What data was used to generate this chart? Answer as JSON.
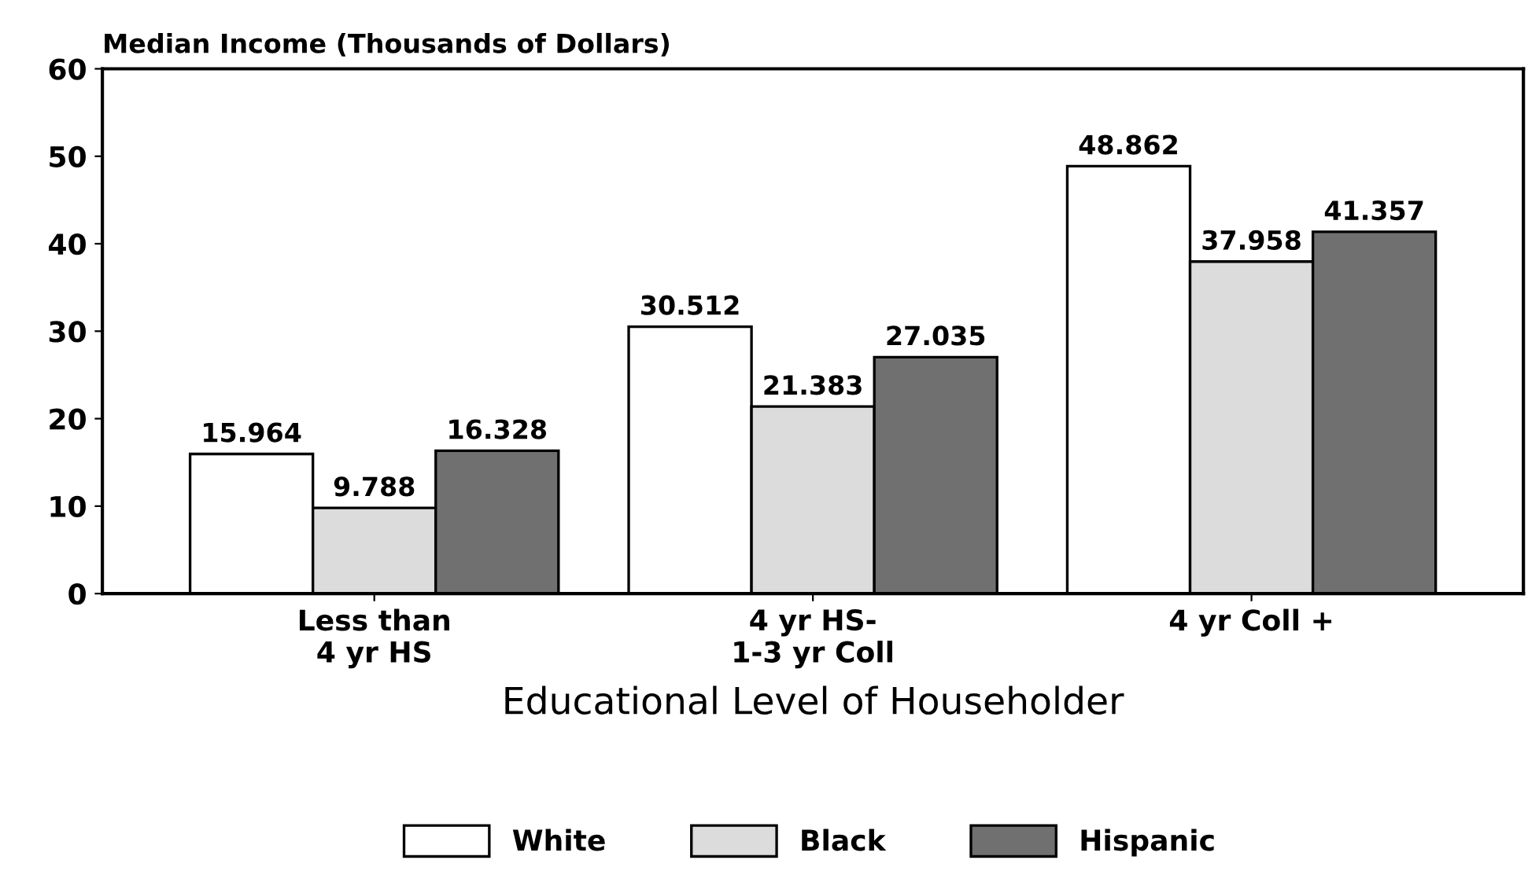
{
  "chart_data": {
    "type": "bar",
    "ylabel": "Median Income (Thousands of Dollars)",
    "xlabel": "Educational Level of Householder",
    "categories": [
      "Less than\n4 yr HS",
      "4 yr HS-\n1-3 yr Coll",
      "4 yr Coll +"
    ],
    "series": [
      {
        "name": "White",
        "color": "#ffffff",
        "values": [
          15.964,
          30.512,
          48.862
        ]
      },
      {
        "name": "Black",
        "color": "#dcdcdc",
        "values": [
          9.788,
          21.383,
          37.958
        ]
      },
      {
        "name": "Hispanic",
        "color": "#707070",
        "values": [
          16.328,
          27.035,
          41.357
        ]
      }
    ],
    "ylim": [
      0,
      60
    ],
    "yticks": [
      0,
      10,
      20,
      30,
      40,
      50,
      60
    ],
    "data_labels": true,
    "grid": false,
    "legend": "bottom"
  }
}
